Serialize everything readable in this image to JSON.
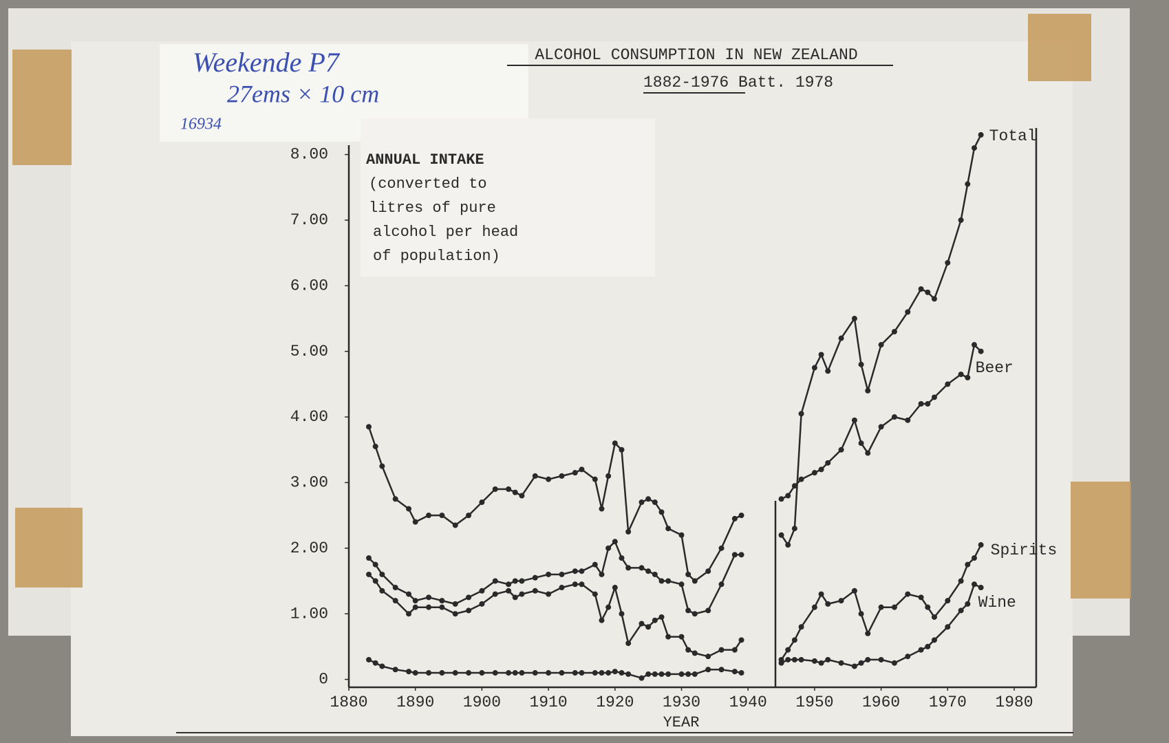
{
  "chart_data": {
    "type": "line",
    "title": "ALCOHOL CONSUMPTION IN NEW ZEALAND",
    "subtitle": "1882-1976 Batt. 1978",
    "ylabel": [
      "ANNUAL INTAKE",
      "(converted to",
      "litres of pure",
      "alcohol per head",
      "of population)"
    ],
    "xlabel": "YEAR",
    "annotations": [
      "Weekende P7",
      "27ems × 10 cm",
      "16934"
    ],
    "x": [
      1883,
      1884,
      1885,
      1887,
      1889,
      1890,
      1892,
      1894,
      1896,
      1898,
      1900,
      1902,
      1904,
      1905,
      1906,
      1908,
      1910,
      1912,
      1914,
      1915,
      1917,
      1918,
      1919,
      1920,
      1921,
      1922,
      1924,
      1925,
      1926,
      1927,
      1928,
      1930,
      1931,
      1932,
      1934,
      1936,
      1938,
      1939,
      1942,
      1945,
      1946,
      1947,
      1948,
      1950,
      1951,
      1952,
      1954,
      1956,
      1957,
      1958,
      1960,
      1962,
      1964,
      1966,
      1967,
      1968,
      1970,
      1972,
      1973,
      1974,
      1975
    ],
    "series": [
      {
        "name": "Total",
        "color": "#2a2a2a",
        "values": [
          3.85,
          3.55,
          3.25,
          2.75,
          2.6,
          2.4,
          2.5,
          2.5,
          2.35,
          2.5,
          2.7,
          2.9,
          2.9,
          2.85,
          2.8,
          3.1,
          3.05,
          3.1,
          3.15,
          3.2,
          3.05,
          2.6,
          3.1,
          3.6,
          3.5,
          2.25,
          2.7,
          2.75,
          2.7,
          2.55,
          2.3,
          2.2,
          1.6,
          1.5,
          1.65,
          2.0,
          2.45,
          2.5,
          null,
          2.2,
          2.05,
          2.3,
          4.05,
          4.75,
          4.95,
          4.7,
          5.2,
          5.5,
          4.8,
          4.4,
          5.1,
          5.3,
          5.6,
          5.95,
          5.9,
          5.8,
          6.35,
          7.0,
          7.55,
          8.1,
          8.3
        ]
      },
      {
        "name": "Beer",
        "color": "#2a2a2a",
        "values": [
          1.85,
          1.75,
          1.6,
          1.4,
          1.3,
          1.2,
          1.25,
          1.2,
          1.15,
          1.25,
          1.35,
          1.5,
          1.45,
          1.5,
          1.5,
          1.55,
          1.6,
          1.6,
          1.65,
          1.65,
          1.75,
          1.6,
          2.0,
          2.1,
          1.85,
          1.7,
          1.7,
          1.65,
          1.6,
          1.5,
          1.5,
          1.45,
          1.05,
          1.0,
          1.05,
          1.45,
          1.9,
          1.9,
          null,
          2.75,
          2.8,
          2.95,
          3.05,
          3.15,
          3.2,
          3.3,
          3.5,
          3.95,
          3.6,
          3.45,
          3.85,
          4.0,
          3.95,
          4.2,
          4.2,
          4.3,
          4.5,
          4.65,
          4.6,
          5.1,
          5.0
        ]
      },
      {
        "name": "Spirits",
        "color": "#2a2a2a",
        "values": [
          1.6,
          1.5,
          1.35,
          1.2,
          1.0,
          1.1,
          1.1,
          1.1,
          1.0,
          1.05,
          1.15,
          1.3,
          1.35,
          1.25,
          1.3,
          1.35,
          1.3,
          1.4,
          1.45,
          1.45,
          1.3,
          0.9,
          1.1,
          1.4,
          1.0,
          0.55,
          0.85,
          0.8,
          0.9,
          0.95,
          0.65,
          0.65,
          0.45,
          0.4,
          0.35,
          0.45,
          0.45,
          0.6,
          null,
          0.3,
          0.45,
          0.6,
          0.8,
          1.1,
          1.3,
          1.15,
          1.2,
          1.35,
          1.0,
          0.7,
          1.1,
          1.1,
          1.3,
          1.25,
          1.1,
          0.95,
          1.2,
          1.5,
          1.75,
          1.85,
          2.05
        ]
      },
      {
        "name": "Wine",
        "color": "#2a2a2a",
        "values": [
          0.3,
          0.25,
          0.2,
          0.15,
          0.12,
          0.1,
          0.1,
          0.1,
          0.1,
          0.1,
          0.1,
          0.1,
          0.1,
          0.1,
          0.1,
          0.1,
          0.1,
          0.1,
          0.1,
          0.1,
          0.1,
          0.1,
          0.1,
          0.12,
          0.1,
          0.08,
          0.02,
          0.08,
          0.08,
          0.08,
          0.08,
          0.08,
          0.08,
          0.08,
          0.15,
          0.15,
          0.12,
          0.1,
          null,
          0.25,
          0.3,
          0.3,
          0.3,
          0.28,
          0.25,
          0.3,
          0.25,
          0.2,
          0.25,
          0.3,
          0.3,
          0.25,
          0.35,
          0.45,
          0.5,
          0.6,
          0.8,
          1.05,
          1.15,
          1.45,
          1.4
        ]
      }
    ],
    "xlim": [
      1880,
      1980
    ],
    "xticks": [
      1880,
      1890,
      1900,
      1910,
      1920,
      1930,
      1940,
      1950,
      1960,
      1970,
      1980
    ],
    "ylim": [
      -0.12,
      8.3
    ],
    "yticks": [
      0,
      {
        "value": 1,
        "label": "1.00"
      },
      {
        "value": 2,
        "label": "2.00"
      },
      {
        "value": 3,
        "label": "3.00"
      },
      {
        "value": 4,
        "label": "4.00"
      },
      {
        "value": 5,
        "label": "5.00"
      },
      {
        "value": 6,
        "label": "6.00"
      },
      {
        "value": 7,
        "label": "7.00"
      },
      {
        "value": 8,
        "label": "8.00"
      }
    ],
    "grid": false
  }
}
